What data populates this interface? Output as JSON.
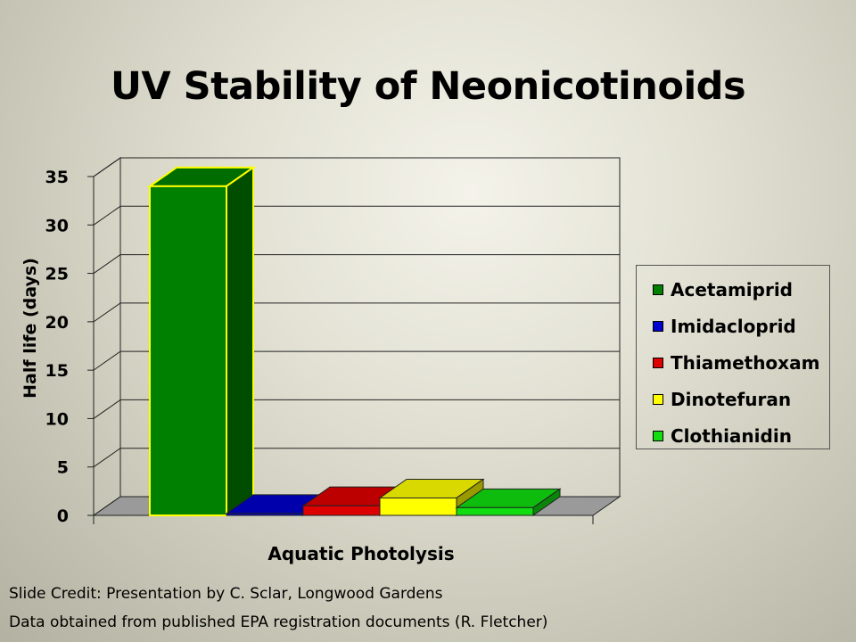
{
  "slide": {
    "title": "UV Stability of Neonicotinoids",
    "credit_line_1": "Slide Credit: Presentation by C. Sclar, Longwood Gardens",
    "credit_line_2": "Data obtained from published EPA registration documents (R. Fletcher)"
  },
  "chart_data": {
    "type": "bar",
    "style": "3d-clustered-column",
    "title": "UV Stability of Neonicotinoids",
    "xlabel": "Aquatic Photolysis",
    "ylabel": "Half life (days)",
    "categories": [
      "Aquatic Photolysis"
    ],
    "ylim": [
      0,
      35
    ],
    "yticks": [
      0,
      5,
      10,
      15,
      20,
      25,
      30,
      35
    ],
    "grid": true,
    "legend_position": "right",
    "series": [
      {
        "name": "Acetamiprid",
        "values": [
          34
        ],
        "color": "#008000",
        "highlight": "#ffff00"
      },
      {
        "name": "Imidacloprid",
        "values": [
          0.2
        ],
        "color": "#0000cc"
      },
      {
        "name": "Thiamethoxam",
        "values": [
          1
        ],
        "color": "#dd0000"
      },
      {
        "name": "Dinotefuran",
        "values": [
          1.8
        ],
        "color": "#ffff00"
      },
      {
        "name": "Clothianidin",
        "values": [
          0.8
        ],
        "color": "#11dd11"
      }
    ]
  }
}
